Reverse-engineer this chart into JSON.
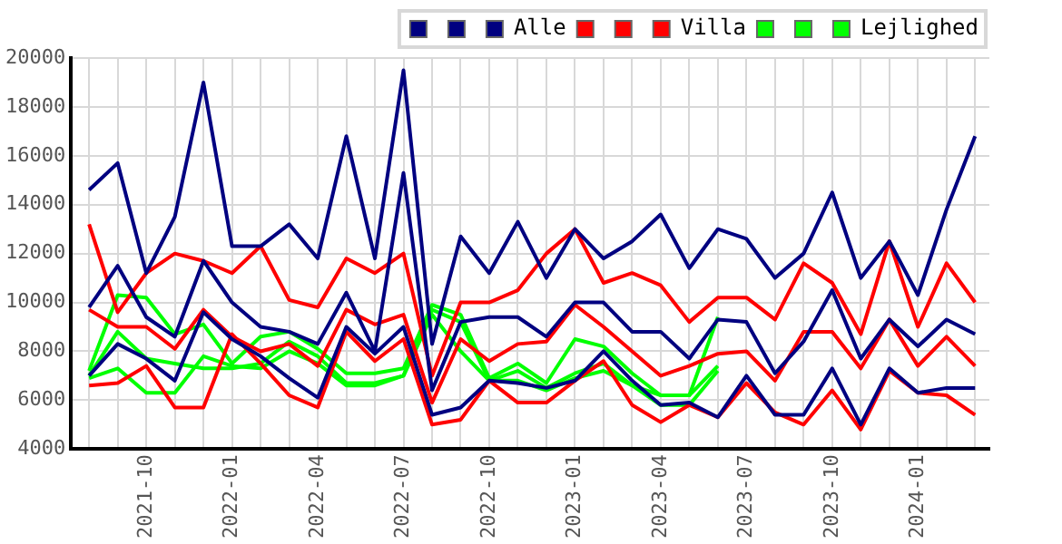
{
  "chart_data": {
    "type": "line",
    "x": [
      "2021-08",
      "2021-09",
      "2021-10",
      "2021-11",
      "2021-12",
      "2022-01",
      "2022-02",
      "2022-03",
      "2022-04",
      "2022-05",
      "2022-06",
      "2022-07",
      "2022-08",
      "2022-09",
      "2022-10",
      "2022-11",
      "2022-12",
      "2023-01",
      "2023-02",
      "2023-03",
      "2023-04",
      "2023-05",
      "2023-06",
      "2023-07",
      "2023-08",
      "2023-09",
      "2023-10",
      "2023-11",
      "2023-12",
      "2024-01",
      "2024-02",
      "2024-03"
    ],
    "series": [
      {
        "color": "#000080",
        "values": [
          14600,
          15700,
          11200,
          13500,
          19000,
          12300,
          12300,
          13200,
          11800,
          16800,
          11800,
          19500,
          8300,
          12700,
          11200,
          13300,
          11000,
          13000,
          11800,
          12500,
          13600,
          11400,
          13000,
          12600,
          11000,
          12000,
          14500,
          11000,
          12500,
          10300,
          13800,
          16800
        ]
      },
      {
        "color": "#000080",
        "values": [
          9800,
          11500,
          9400,
          8600,
          11700,
          10000,
          9000,
          8800,
          8300,
          10400,
          8000,
          15300,
          6400,
          9200,
          9400,
          9400,
          8600,
          10000,
          10000,
          8800,
          8800,
          7700,
          9300,
          9200,
          7100,
          8400,
          10500,
          7700,
          9300,
          8200,
          9300,
          8700
        ]
      },
      {
        "name": "Alle",
        "color": "#000080",
        "values": [
          7000,
          8300,
          7700,
          6800,
          9600,
          8500,
          7800,
          6900,
          6100,
          9000,
          7900,
          9000,
          5400,
          5700,
          6800,
          6700,
          6500,
          6800,
          8000,
          6800,
          5800,
          5900,
          5300,
          7000,
          5400,
          5400,
          7300,
          5000,
          7300,
          6300,
          6500,
          6500
        ]
      },
      {
        "color": "#ff0000",
        "values": [
          13200,
          9600,
          11200,
          12000,
          11700,
          11200,
          12300,
          10100,
          9800,
          11800,
          11200,
          12000,
          7000,
          10000,
          10000,
          10500,
          12000,
          13000,
          10800,
          11200,
          10700,
          9200,
          10200,
          10200,
          9300,
          11600,
          10800,
          8700,
          12500,
          9000,
          11600,
          10000
        ]
      },
      {
        "color": "#ff0000",
        "values": [
          9700,
          9000,
          9000,
          8100,
          9700,
          8600,
          8000,
          8300,
          7400,
          9700,
          9100,
          9500,
          5900,
          8500,
          7600,
          8300,
          8400,
          9900,
          9000,
          8000,
          7000,
          7400,
          7900,
          8000,
          6800,
          8800,
          8800,
          7300,
          9300,
          7400,
          8600,
          7400
        ]
      },
      {
        "name": "Villa",
        "color": "#ff0000",
        "values": [
          6600,
          6700,
          7400,
          5700,
          5700,
          8700,
          7500,
          6200,
          5700,
          8800,
          7600,
          8500,
          5000,
          5200,
          6800,
          5900,
          5900,
          6800,
          7600,
          5800,
          5100,
          5800,
          5300,
          6700,
          5500,
          5000,
          6400,
          4800,
          7200,
          6300,
          6200,
          5400
        ]
      },
      {
        "color": "#00ff00",
        "values": [
          7200,
          10300,
          10200,
          8700,
          9100,
          7500,
          8600,
          8800,
          8100,
          7100,
          7100,
          7300,
          9900,
          9500,
          6900,
          7500,
          6700,
          8500,
          8200,
          7100,
          6200,
          6200,
          9400,
          null,
          null,
          null,
          null,
          null,
          null,
          null,
          null,
          null
        ]
      },
      {
        "color": "#00ff00",
        "values": [
          7000,
          8800,
          7700,
          7500,
          7300,
          7300,
          7500,
          8400,
          7800,
          6700,
          6700,
          7000,
          9700,
          9200,
          6800,
          7200,
          6500,
          7100,
          7500,
          6600,
          6200,
          6200,
          7400,
          null,
          null,
          null,
          null,
          null,
          null,
          null,
          null,
          null
        ]
      },
      {
        "name": "Lejlighed",
        "color": "#00ff00",
        "values": [
          6900,
          7300,
          6300,
          6300,
          7800,
          7400,
          7300,
          8000,
          7500,
          6600,
          6600,
          7000,
          9500,
          8000,
          6800,
          6800,
          6400,
          6900,
          7200,
          6600,
          5800,
          5800,
          7200,
          null,
          null,
          null,
          null,
          null,
          null,
          null,
          null,
          null
        ]
      }
    ],
    "xlim": [
      "2021-07-12",
      "2024-03-16"
    ],
    "xticks": [
      "2021-10",
      "2022-01",
      "2022-04",
      "2022-07",
      "2022-10",
      "2023-01",
      "2023-04",
      "2023-07",
      "2023-10",
      "2024-01"
    ],
    "ylim": [
      4000,
      20000
    ],
    "yticks": [
      4000,
      6000,
      8000,
      10000,
      12000,
      14000,
      16000,
      18000,
      20000
    ],
    "grid": true,
    "legend": "top right",
    "marker": "none",
    "line_style": "solid"
  }
}
